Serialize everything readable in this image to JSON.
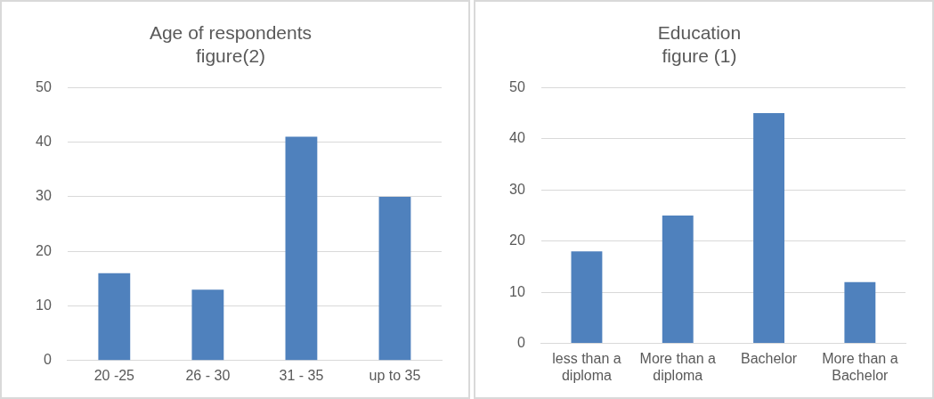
{
  "chart_data": [
    {
      "type": "bar",
      "title": "Age of respondents\nfigure(2)",
      "categories": [
        "20 -25",
        "26 - 30",
        "31 - 35",
        "up to 35"
      ],
      "values": [
        16,
        13,
        41,
        30
      ],
      "color": "#4f81bd",
      "ylim": [
        0,
        50
      ],
      "yticks": [
        0,
        10,
        20,
        30,
        40,
        50
      ],
      "grid": "y"
    },
    {
      "type": "bar",
      "title": "Education\nfigure (1)",
      "categories": [
        "less than a diploma",
        "More than a diploma",
        "Bachelor",
        "More than a Bachelor"
      ],
      "values": [
        18,
        25,
        45,
        12
      ],
      "color": "#4f81bd",
      "ylim": [
        0,
        50
      ],
      "yticks": [
        0,
        10,
        20,
        30,
        40,
        50
      ],
      "grid": "y"
    }
  ]
}
